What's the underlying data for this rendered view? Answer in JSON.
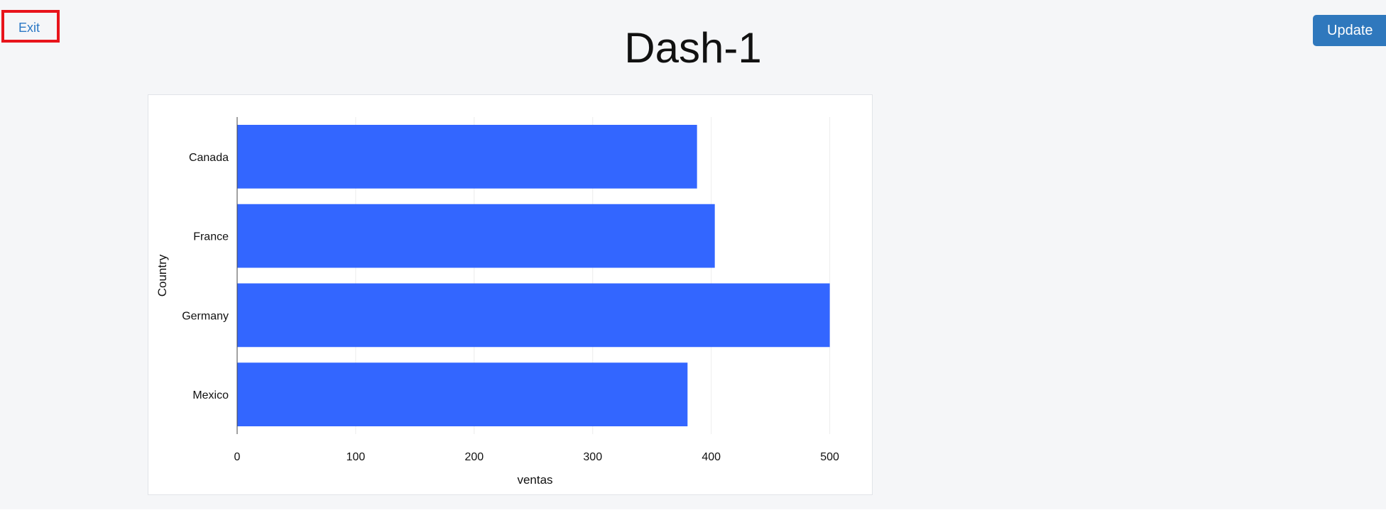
{
  "header": {
    "exit_label": "Exit",
    "title": "Dash-1",
    "update_label": "Update"
  },
  "colors": {
    "background": "#f5f6f8",
    "bar": "#3366ff",
    "exit_highlight": "#e8141b",
    "update_button": "#2f78bd"
  },
  "chart_data": {
    "type": "bar",
    "orientation": "horizontal",
    "categories": [
      "Canada",
      "France",
      "Germany",
      "Mexico"
    ],
    "values": [
      388,
      403,
      500,
      380
    ],
    "xlabel": "ventas",
    "ylabel": "Country",
    "xlim": [
      0,
      520
    ],
    "xticks": [
      0,
      100,
      200,
      300,
      400,
      500
    ],
    "grid": true
  }
}
